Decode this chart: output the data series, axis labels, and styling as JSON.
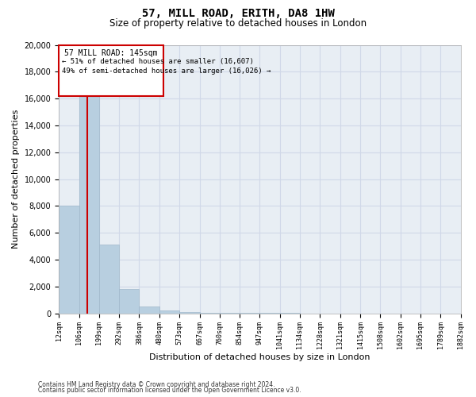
{
  "title": "57, MILL ROAD, ERITH, DA8 1HW",
  "subtitle": "Size of property relative to detached houses in London",
  "xlabel": "Distribution of detached houses by size in London",
  "ylabel": "Number of detached properties",
  "footnote1": "Contains HM Land Registry data © Crown copyright and database right 2024.",
  "footnote2": "Contains public sector information licensed under the Open Government Licence v3.0.",
  "annotation_title": "57 MILL ROAD: 145sqm",
  "annotation_line1": "← 51% of detached houses are smaller (16,607)",
  "annotation_line2": "49% of semi-detached houses are larger (16,026) →",
  "property_size": 145,
  "bar_color": "#b8cfe0",
  "bar_edge_color": "#a0b8cc",
  "vline_color": "#cc0000",
  "annotation_box_edgecolor": "#cc0000",
  "annotation_box_facecolor": "white",
  "grid_color": "#d0d8e8",
  "bg_color": "#e8eef4",
  "bins": [
    12,
    106,
    199,
    292,
    386,
    480,
    573,
    667,
    760,
    854,
    947,
    1041,
    1134,
    1228,
    1321,
    1415,
    1508,
    1602,
    1695,
    1789,
    1882
  ],
  "counts": [
    8000,
    16607,
    5100,
    1800,
    500,
    220,
    120,
    70,
    50,
    30,
    20,
    15,
    10,
    8,
    6,
    5,
    4,
    4,
    3,
    3
  ],
  "ylim": [
    0,
    20000
  ],
  "yticks": [
    0,
    2000,
    4000,
    6000,
    8000,
    10000,
    12000,
    14000,
    16000,
    18000,
    20000
  ],
  "title_fontsize": 10,
  "subtitle_fontsize": 8.5,
  "ylabel_fontsize": 8,
  "xlabel_fontsize": 8,
  "ytick_fontsize": 7,
  "xtick_fontsize": 6
}
